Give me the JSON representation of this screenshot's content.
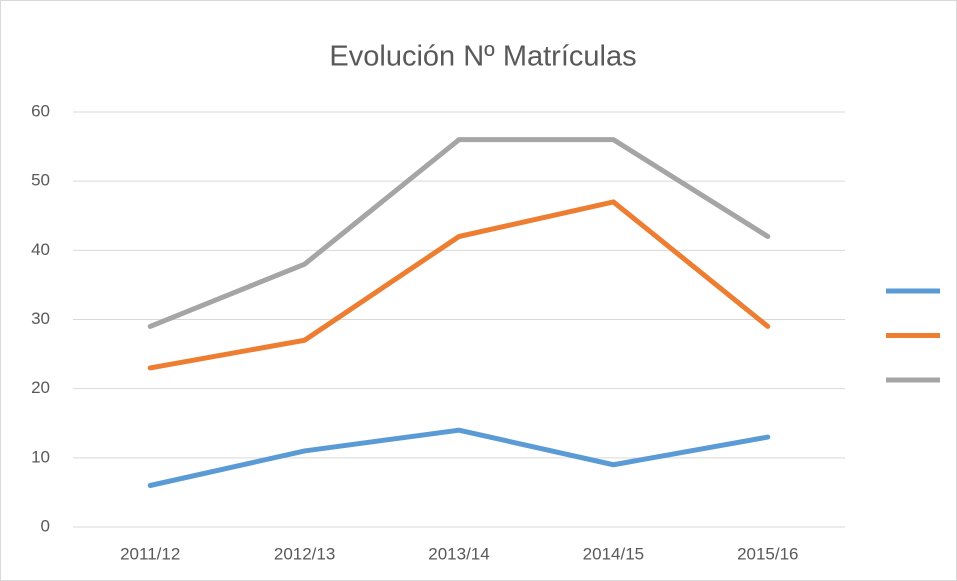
{
  "chart_data": {
    "type": "line",
    "title": "Evolución Nº Matrículas",
    "categories": [
      "2011/12",
      "2012/13",
      "2013/14",
      "2014/15",
      "2015/16"
    ],
    "series": [
      {
        "color": "#5b9bd5",
        "values": [
          6,
          11,
          14,
          9,
          13
        ]
      },
      {
        "color": "#ed7d31",
        "values": [
          23,
          27,
          42,
          47,
          29
        ]
      },
      {
        "color": "#a5a5a5",
        "values": [
          29,
          38,
          56,
          56,
          42
        ]
      }
    ],
    "ylim": [
      0,
      60
    ],
    "yticks": [
      0,
      10,
      20,
      30,
      40,
      50,
      60
    ],
    "grid": true,
    "legend": "right"
  }
}
